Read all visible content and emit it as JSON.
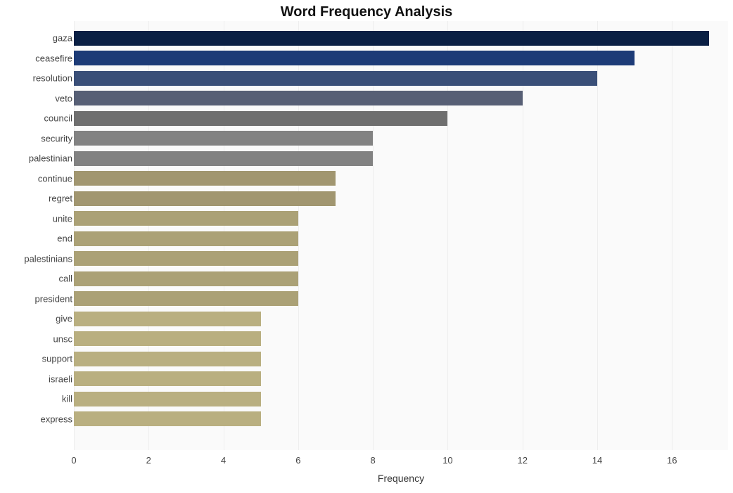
{
  "chart": {
    "type": "bar",
    "orientation": "horizontal",
    "title": "Word Frequency Analysis",
    "title_fontsize": 20,
    "title_fontweight": "bold",
    "title_color": "#111111",
    "xaxis_title": "Frequency",
    "xaxis_title_fontsize": 14,
    "ytick_fontsize": 13,
    "xtick_fontsize": 13,
    "background_color": "#ffffff",
    "plot_background_color": "#fafafa",
    "grid_color": "#eeeeee",
    "xlim": [
      0,
      17.5
    ],
    "xtick_step": 2,
    "xticks": [
      0,
      2,
      4,
      6,
      8,
      10,
      12,
      14,
      16
    ],
    "bar_height_ratio": 0.72,
    "categories": [
      "gaza",
      "ceasefire",
      "resolution",
      "veto",
      "council",
      "security",
      "palestinian",
      "continue",
      "regret",
      "unite",
      "end",
      "palestinians",
      "call",
      "president",
      "give",
      "unsc",
      "support",
      "israeli",
      "kill",
      "express"
    ],
    "values": [
      17,
      15,
      14,
      12,
      10,
      8,
      8,
      7,
      7,
      6,
      6,
      6,
      6,
      6,
      5,
      5,
      5,
      5,
      5,
      5
    ],
    "bar_colors": [
      "#0a1f44",
      "#1d3b77",
      "#3a4f78",
      "#575f75",
      "#6f6f6f",
      "#828282",
      "#828282",
      "#a19670",
      "#a19670",
      "#aba176",
      "#aba176",
      "#aba176",
      "#aba176",
      "#aba176",
      "#b9af80",
      "#b9af80",
      "#b9af80",
      "#b9af80",
      "#b9af80",
      "#b9af80"
    ]
  }
}
